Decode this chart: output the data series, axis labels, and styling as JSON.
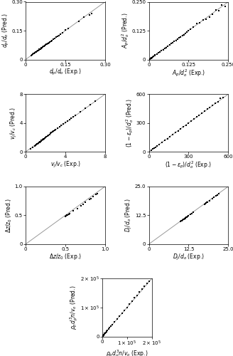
{
  "plots": [
    {
      "xlabel": "$d_p/d_o$ (Exp.)",
      "ylabel": "$d_p/d_o$ (Pred.)",
      "xlim": [
        0,
        0.3
      ],
      "ylim": [
        0,
        0.3
      ],
      "xticks": [
        0,
        0.15,
        0.3
      ],
      "yticks": [
        0,
        0.15,
        0.3
      ],
      "xticklabels": [
        "0",
        "0.15",
        "0.30"
      ],
      "yticklabels": [
        "0",
        "0.15",
        "0.30"
      ],
      "data_x": [
        0.02,
        0.022,
        0.025,
        0.027,
        0.03,
        0.032,
        0.035,
        0.038,
        0.04,
        0.042,
        0.045,
        0.048,
        0.05,
        0.052,
        0.055,
        0.058,
        0.06,
        0.062,
        0.065,
        0.068,
        0.07,
        0.072,
        0.075,
        0.078,
        0.08,
        0.082,
        0.085,
        0.088,
        0.09,
        0.092,
        0.095,
        0.098,
        0.1,
        0.105,
        0.11,
        0.115,
        0.12,
        0.125,
        0.13,
        0.14,
        0.15,
        0.16,
        0.2,
        0.22,
        0.24,
        0.25
      ],
      "data_y": [
        0.02,
        0.022,
        0.025,
        0.027,
        0.03,
        0.032,
        0.035,
        0.038,
        0.04,
        0.042,
        0.045,
        0.048,
        0.05,
        0.052,
        0.055,
        0.058,
        0.06,
        0.062,
        0.065,
        0.068,
        0.07,
        0.072,
        0.075,
        0.078,
        0.08,
        0.082,
        0.085,
        0.088,
        0.09,
        0.092,
        0.095,
        0.098,
        0.1,
        0.105,
        0.11,
        0.115,
        0.12,
        0.125,
        0.13,
        0.14,
        0.152,
        0.163,
        0.2,
        0.222,
        0.232,
        0.24
      ],
      "marker": "s",
      "markersize": 2.2
    },
    {
      "xlabel": "$A_p/d_o^2$ (Exp.)",
      "ylabel": "$A_p/d_o^2$ (Pred.)",
      "xlim": [
        0,
        0.25
      ],
      "ylim": [
        0,
        0.25
      ],
      "xticks": [
        0,
        0.125,
        0.25
      ],
      "yticks": [
        0,
        0.125,
        0.25
      ],
      "xticklabels": [
        "0",
        "0.125",
        "0.250"
      ],
      "yticklabels": [
        "0",
        "0.125",
        "0.250"
      ],
      "data_x": [
        0.003,
        0.005,
        0.007,
        0.008,
        0.01,
        0.012,
        0.015,
        0.018,
        0.02,
        0.025,
        0.03,
        0.035,
        0.04,
        0.045,
        0.05,
        0.055,
        0.06,
        0.065,
        0.07,
        0.075,
        0.08,
        0.085,
        0.09,
        0.095,
        0.1,
        0.105,
        0.11,
        0.115,
        0.12,
        0.125,
        0.13,
        0.14,
        0.15,
        0.16,
        0.17,
        0.18,
        0.19,
        0.2,
        0.21,
        0.22,
        0.23,
        0.24
      ],
      "data_y": [
        0.003,
        0.004,
        0.006,
        0.007,
        0.009,
        0.011,
        0.014,
        0.017,
        0.019,
        0.024,
        0.028,
        0.033,
        0.038,
        0.043,
        0.048,
        0.052,
        0.058,
        0.063,
        0.068,
        0.073,
        0.078,
        0.083,
        0.088,
        0.093,
        0.098,
        0.103,
        0.108,
        0.113,
        0.118,
        0.126,
        0.132,
        0.142,
        0.155,
        0.158,
        0.17,
        0.175,
        0.185,
        0.195,
        0.215,
        0.21,
        0.235,
        0.23
      ],
      "marker": "s",
      "markersize": 2.2
    },
    {
      "xlabel": "$v_j/v_c$ (Exp.)",
      "ylabel": "$v_j/v_c$ (Pred.)",
      "xlim": [
        0,
        8
      ],
      "ylim": [
        0,
        8
      ],
      "xticks": [
        0,
        4,
        8
      ],
      "yticks": [
        0,
        4,
        8
      ],
      "xticklabels": [
        "0",
        "4",
        "8"
      ],
      "yticklabels": [
        "0",
        "4",
        "8"
      ],
      "data_x": [
        0.5,
        0.7,
        0.9,
        1.0,
        1.1,
        1.15,
        1.2,
        1.25,
        1.3,
        1.35,
        1.4,
        1.45,
        1.5,
        1.55,
        1.6,
        1.65,
        1.7,
        1.75,
        1.8,
        1.85,
        1.9,
        1.95,
        2.0,
        2.1,
        2.2,
        2.3,
        2.4,
        2.5,
        2.6,
        2.7,
        2.8,
        2.9,
        3.0,
        3.2,
        3.4,
        3.6,
        3.8,
        4.0,
        4.2,
        4.4,
        4.6,
        4.8,
        5.0,
        5.5,
        6.0,
        6.5,
        7.0
      ],
      "data_y": [
        0.4,
        0.65,
        0.85,
        0.95,
        1.05,
        1.1,
        1.15,
        1.2,
        1.25,
        1.3,
        1.35,
        1.4,
        1.45,
        1.5,
        1.55,
        1.6,
        1.65,
        1.7,
        1.75,
        1.8,
        1.85,
        1.9,
        1.95,
        2.1,
        2.2,
        2.3,
        2.4,
        2.55,
        2.65,
        2.75,
        2.85,
        2.95,
        3.05,
        3.25,
        3.45,
        3.65,
        3.85,
        4.05,
        4.25,
        4.45,
        4.65,
        4.85,
        5.05,
        5.55,
        6.05,
        6.55,
        7.05
      ],
      "marker": "s",
      "markersize": 2.2
    },
    {
      "xlabel": "$(1-\\epsilon_p)/d_o^2$ (Exp.)",
      "ylabel": "$(1-\\epsilon_p)/d_o^2$ (Pred.)",
      "xlim": [
        0,
        600
      ],
      "ylim": [
        0,
        600
      ],
      "xticks": [
        0,
        300,
        600
      ],
      "yticks": [
        0,
        300,
        600
      ],
      "xticklabels": [
        "0",
        "300",
        "600"
      ],
      "yticklabels": [
        "0",
        "300",
        "600"
      ],
      "data_x": [
        20,
        30,
        40,
        50,
        60,
        80,
        100,
        120,
        140,
        160,
        180,
        200,
        220,
        240,
        260,
        280,
        300,
        320,
        340,
        360,
        380,
        400,
        420,
        440,
        460,
        480,
        500,
        520,
        540,
        560
      ],
      "data_y": [
        18,
        28,
        38,
        48,
        58,
        78,
        98,
        118,
        138,
        158,
        178,
        198,
        218,
        238,
        258,
        278,
        298,
        322,
        342,
        362,
        382,
        402,
        422,
        442,
        462,
        485,
        505,
        520,
        555,
        565
      ],
      "marker": "s",
      "markersize": 2.2
    },
    {
      "xlabel": "$\\Delta z/z_0$ (Exp.)",
      "ylabel": "$\\Delta z/z_0$ (Pred.)",
      "xlim": [
        0,
        1.0
      ],
      "ylim": [
        0,
        1.0
      ],
      "xticks": [
        0,
        0.5,
        1.0
      ],
      "yticks": [
        0,
        0.5,
        1.0
      ],
      "xticklabels": [
        "0",
        "0.5",
        "1.0"
      ],
      "yticklabels": [
        "0",
        "0.5",
        "1.0"
      ],
      "data_x": [
        0.5,
        0.51,
        0.52,
        0.53,
        0.54,
        0.55,
        0.6,
        0.65,
        0.7,
        0.72,
        0.75,
        0.8,
        0.82,
        0.85,
        0.88,
        0.9
      ],
      "data_y": [
        0.48,
        0.49,
        0.5,
        0.51,
        0.52,
        0.53,
        0.58,
        0.62,
        0.67,
        0.69,
        0.72,
        0.78,
        0.79,
        0.82,
        0.86,
        0.88
      ],
      "marker": "s",
      "markersize": 2.2
    },
    {
      "xlabel": "$D_j/d_o$ (Exp.)",
      "ylabel": "$D_j/d_o$ (Pred.)",
      "xlim": [
        0,
        25.0
      ],
      "ylim": [
        0,
        25.0
      ],
      "xticks": [
        0,
        12.5,
        25.0
      ],
      "yticks": [
        0,
        12.5,
        25.0
      ],
      "xticklabels": [
        "0",
        "12.5",
        "25.0"
      ],
      "yticklabels": [
        "0",
        "12.5",
        "25.0"
      ],
      "data_x": [
        10.0,
        10.2,
        10.4,
        10.6,
        10.8,
        11.0,
        11.2,
        11.4,
        11.6,
        11.8,
        12.0,
        12.2,
        12.5,
        13.0,
        13.5,
        14.0,
        17.5,
        17.8,
        18.0,
        18.2,
        18.5,
        19.0,
        20.0,
        20.5,
        21.0,
        21.5,
        22.0
      ],
      "data_y": [
        9.8,
        10.0,
        10.2,
        10.4,
        10.6,
        10.8,
        11.0,
        11.2,
        11.4,
        11.6,
        11.8,
        12.0,
        12.3,
        12.8,
        13.3,
        13.8,
        17.3,
        17.6,
        17.8,
        18.0,
        18.3,
        18.8,
        19.8,
        20.3,
        20.8,
        21.3,
        21.8
      ],
      "marker": "s",
      "markersize": 2.2
    },
    {
      "xlabel": "$\\rho_p d_p^3 n/v_o$ (Exp.)",
      "ylabel": "$\\rho_p d_p^3 n/v_o$ (Pred.)",
      "xlim": [
        0,
        200000
      ],
      "ylim": [
        0,
        200000
      ],
      "xticks": [
        0,
        100000,
        200000
      ],
      "yticks": [
        0,
        100000,
        200000
      ],
      "xticklabels": [
        "0",
        "$1\\times10^5$",
        "$2\\times10^5$"
      ],
      "yticklabels": [
        "0",
        "$1\\times10^5$",
        "$2\\times10^5$"
      ],
      "data_x": [
        500,
        800,
        1000,
        1200,
        1500,
        1800,
        2000,
        2500,
        3000,
        3500,
        4000,
        4500,
        5000,
        5500,
        6000,
        7000,
        8000,
        9000,
        10000,
        12000,
        14000,
        16000,
        18000,
        20000,
        25000,
        30000,
        35000,
        40000,
        50000,
        60000,
        70000,
        80000,
        90000,
        100000,
        110000,
        120000,
        130000,
        140000,
        150000,
        160000,
        170000,
        180000,
        190000
      ],
      "data_y": [
        400,
        700,
        900,
        1100,
        1400,
        1700,
        1900,
        2400,
        2900,
        3400,
        3900,
        4400,
        4900,
        5400,
        5900,
        6900,
        7900,
        8900,
        9900,
        11900,
        13900,
        15900,
        17900,
        19900,
        24900,
        29900,
        34900,
        39900,
        49900,
        59900,
        69900,
        79900,
        89900,
        99900,
        112000,
        122000,
        134000,
        143000,
        155000,
        163000,
        175000,
        183000,
        191000
      ],
      "marker": "s",
      "markersize": 2.2
    }
  ],
  "figure_bg": "#ffffff",
  "axes_bg": "#ffffff",
  "line_color": "#999999",
  "marker_color": "#000000",
  "fontsize_label": 5.5,
  "fontsize_tick": 5.0
}
